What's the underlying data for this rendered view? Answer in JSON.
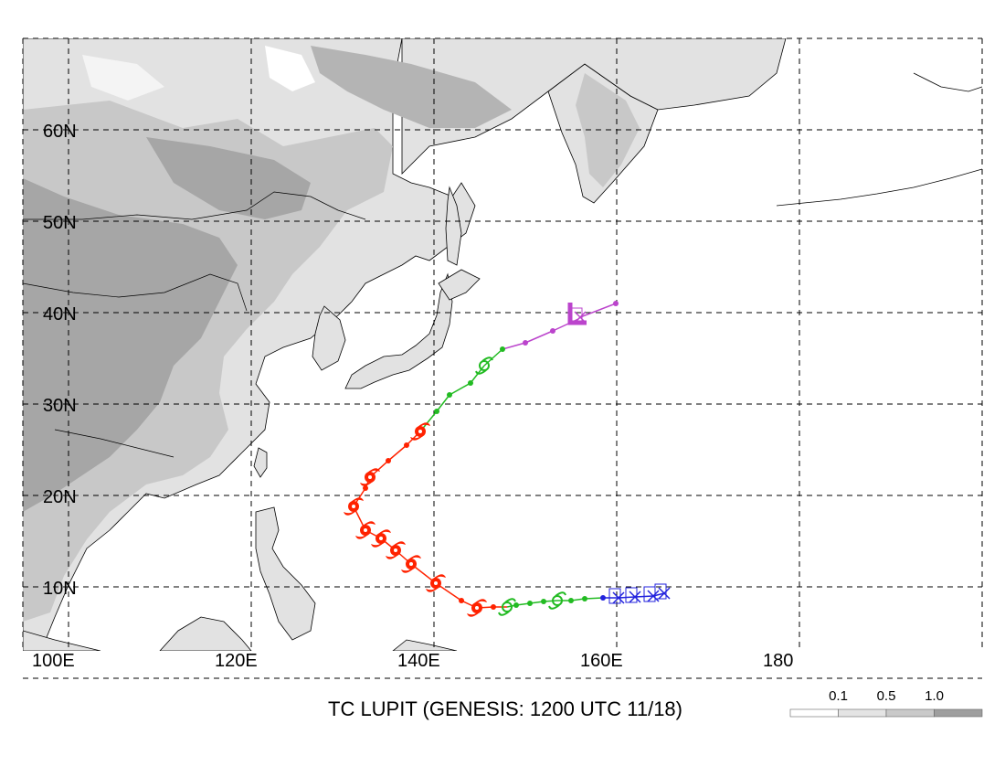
{
  "title": "TC LUPIT (GENESIS: 1200 UTC 11/18)",
  "axes": {
    "lon_ticks": [
      {
        "value": 100,
        "label": "100E"
      },
      {
        "value": 120,
        "label": "120E"
      },
      {
        "value": 140,
        "label": "140E"
      },
      {
        "value": 160,
        "label": "160E"
      },
      {
        "value": 180,
        "label": "180"
      }
    ],
    "lat_ticks": [
      {
        "value": 10,
        "label": "10N"
      },
      {
        "value": 20,
        "label": "20N"
      },
      {
        "value": 30,
        "label": "30N"
      },
      {
        "value": 40,
        "label": "40N"
      },
      {
        "value": 50,
        "label": "50N"
      },
      {
        "value": 60,
        "label": "60N"
      }
    ],
    "lon_range": [
      95,
      200
    ],
    "lat_range": [
      3,
      70
    ],
    "gridlines": true
  },
  "legend": {
    "position": "bottom-right",
    "labels": [
      "0.1",
      "0.5",
      "1.0"
    ],
    "colors": [
      "#ffffff",
      "#e4e4e4",
      "#c9c9c9",
      "#9e9e9e"
    ]
  },
  "colors": {
    "pre_storm": "#2222dd",
    "tropical_storm": "#22bb22",
    "typhoon": "#ff2200",
    "extratropical": "#bb44cc",
    "land_light": "#e2e2e2",
    "land_mid": "#c8c8c8",
    "land_dark": "#a6a6a6"
  },
  "track": [
    {
      "lon": 165.2,
      "lat": 9.3,
      "stage": "pre_storm",
      "symbol": "x"
    },
    {
      "lon": 164.0,
      "lat": 9.0,
      "stage": "pre_storm",
      "symbol": "x"
    },
    {
      "lon": 162.0,
      "lat": 8.9,
      "stage": "pre_storm",
      "symbol": "x"
    },
    {
      "lon": 160.2,
      "lat": 8.8,
      "stage": "pre_storm",
      "symbol": "x"
    },
    {
      "lon": 158.5,
      "lat": 8.8,
      "stage": "pre_storm",
      "symbol": "dot"
    },
    {
      "lon": 156.5,
      "lat": 8.7,
      "stage": "tropical_storm",
      "symbol": "dot"
    },
    {
      "lon": 155.0,
      "lat": 8.5,
      "stage": "tropical_storm",
      "symbol": "dot"
    },
    {
      "lon": 153.5,
      "lat": 8.5,
      "stage": "tropical_storm",
      "symbol": "storm"
    },
    {
      "lon": 152.0,
      "lat": 8.4,
      "stage": "tropical_storm",
      "symbol": "dot"
    },
    {
      "lon": 150.5,
      "lat": 8.2,
      "stage": "tropical_storm",
      "symbol": "dot"
    },
    {
      "lon": 149.0,
      "lat": 8.0,
      "stage": "tropical_storm",
      "symbol": "dot"
    },
    {
      "lon": 148.0,
      "lat": 7.8,
      "stage": "tropical_storm",
      "symbol": "storm"
    },
    {
      "lon": 146.5,
      "lat": 7.8,
      "stage": "typhoon",
      "symbol": "dot"
    },
    {
      "lon": 144.7,
      "lat": 7.7,
      "stage": "typhoon",
      "symbol": "typhoon"
    },
    {
      "lon": 143.0,
      "lat": 8.5,
      "stage": "typhoon",
      "symbol": "dot"
    },
    {
      "lon": 140.2,
      "lat": 10.4,
      "stage": "typhoon",
      "symbol": "typhoon"
    },
    {
      "lon": 137.5,
      "lat": 12.5,
      "stage": "typhoon",
      "symbol": "typhoon"
    },
    {
      "lon": 135.8,
      "lat": 14.0,
      "stage": "typhoon",
      "symbol": "typhoon"
    },
    {
      "lon": 134.2,
      "lat": 15.3,
      "stage": "typhoon",
      "symbol": "typhoon"
    },
    {
      "lon": 132.5,
      "lat": 16.2,
      "stage": "typhoon",
      "symbol": "typhoon"
    },
    {
      "lon": 131.2,
      "lat": 18.8,
      "stage": "typhoon",
      "symbol": "typhoon"
    },
    {
      "lon": 132.5,
      "lat": 20.8,
      "stage": "typhoon",
      "symbol": "dot"
    },
    {
      "lon": 133.0,
      "lat": 22.0,
      "stage": "typhoon",
      "symbol": "typhoon"
    },
    {
      "lon": 135.0,
      "lat": 23.8,
      "stage": "typhoon",
      "symbol": "dot"
    },
    {
      "lon": 137.0,
      "lat": 25.5,
      "stage": "typhoon",
      "symbol": "dot"
    },
    {
      "lon": 138.5,
      "lat": 27.0,
      "stage": "typhoon",
      "symbol": "typhoon"
    },
    {
      "lon": 140.3,
      "lat": 29.2,
      "stage": "tropical_storm",
      "symbol": "dot"
    },
    {
      "lon": 141.7,
      "lat": 31.0,
      "stage": "tropical_storm",
      "symbol": "dot"
    },
    {
      "lon": 144.0,
      "lat": 32.3,
      "stage": "tropical_storm",
      "symbol": "dot"
    },
    {
      "lon": 145.5,
      "lat": 34.2,
      "stage": "tropical_storm",
      "symbol": "storm"
    },
    {
      "lon": 147.5,
      "lat": 36.0,
      "stage": "tropical_storm",
      "symbol": "dot"
    },
    {
      "lon": 150.0,
      "lat": 36.7,
      "stage": "extratropical",
      "symbol": "dot"
    },
    {
      "lon": 153.0,
      "lat": 38.0,
      "stage": "extratropical",
      "symbol": "dot"
    },
    {
      "lon": 155.8,
      "lat": 39.3,
      "stage": "extratropical",
      "symbol": "L"
    },
    {
      "lon": 156.0,
      "lat": 39.5,
      "stage": "extratropical",
      "symbol": "x"
    },
    {
      "lon": 159.9,
      "lat": 41.0,
      "stage": "extratropical",
      "symbol": "dot"
    }
  ]
}
